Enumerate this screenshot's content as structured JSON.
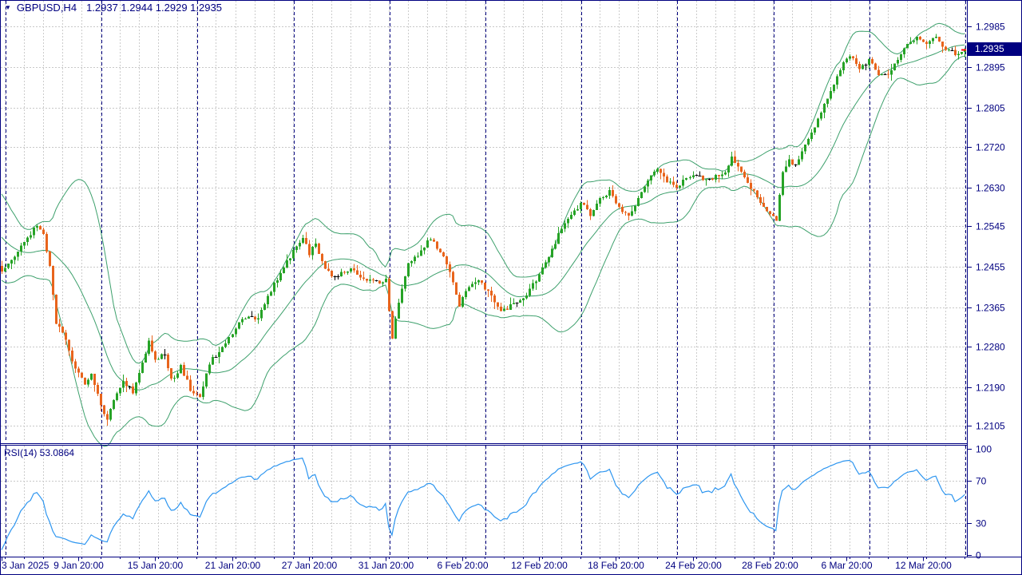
{
  "window": {
    "marker_icon": "▼",
    "title_symbol": "GBPUSD,H4",
    "title_ohlc": "1.2937 1.2944 1.2929 1.2935"
  },
  "colors": {
    "background": "#ffffff",
    "foreground": "#000080",
    "grid": "#c8c8c8",
    "day_grid": "#cccccc",
    "week_separator": "#000080",
    "bull_candle": "#26a326",
    "bear_candle": "#e8641c",
    "doji": "#000000",
    "bollinger": "#3da06c",
    "rsi_line": "#2e96f0",
    "price_tag_bg": "#000080",
    "price_tag_text": "#ffffff",
    "last_price_marker": "#ff0000"
  },
  "chart_data": {
    "type": "candlestick",
    "symbol": "GBPUSD",
    "timeframe": "H4",
    "title": "GBPUSD,H4",
    "ohlc_display": {
      "open": "1.2937",
      "high": "1.2944",
      "low": "1.2929",
      "close": "1.2935"
    },
    "current_price": "1.2935",
    "bars_total": 302,
    "price_axis_labels": [
      "1.2985",
      "1.2895",
      "1.2805",
      "1.2720",
      "1.2630",
      "1.2545",
      "1.2455",
      "1.2365",
      "1.2280",
      "1.2190",
      "1.2105"
    ],
    "time_axis_labels": [
      {
        "index": 0,
        "text": "3 Jan 2025"
      },
      {
        "index": 24,
        "text": "9 Jan 20:00"
      },
      {
        "index": 48,
        "text": "15 Jan 20:00"
      },
      {
        "index": 72,
        "text": "21 Jan 20:00"
      },
      {
        "index": 96,
        "text": "27 Jan 20:00"
      },
      {
        "index": 120,
        "text": "31 Jan 20:00"
      },
      {
        "index": 144,
        "text": "6 Feb 20:00"
      },
      {
        "index": 168,
        "text": "12 Feb 20:00"
      },
      {
        "index": 192,
        "text": "18 Feb 20:00"
      },
      {
        "index": 216,
        "text": "24 Feb 20:00"
      },
      {
        "index": 240,
        "text": "28 Feb 20:00"
      },
      {
        "index": 264,
        "text": "6 Mar 20:00"
      },
      {
        "index": 288,
        "text": "12 Mar 20:00"
      }
    ],
    "week_separator_indices": [
      1,
      31,
      61,
      91,
      121,
      151,
      181,
      211,
      241,
      271,
      301
    ],
    "day_step": 6,
    "close_anchors": [
      [
        0,
        1.244
      ],
      [
        3,
        1.2475
      ],
      [
        7,
        1.2505
      ],
      [
        11,
        1.255
      ],
      [
        13,
        1.2525
      ],
      [
        15,
        1.246
      ],
      [
        17,
        1.2335
      ],
      [
        20,
        1.229
      ],
      [
        23,
        1.223
      ],
      [
        26,
        1.2195
      ],
      [
        28,
        1.222
      ],
      [
        31,
        1.2155
      ],
      [
        33,
        1.2115
      ],
      [
        35,
        1.2165
      ],
      [
        38,
        1.2205
      ],
      [
        41,
        1.218
      ],
      [
        44,
        1.2245
      ],
      [
        46,
        1.229
      ],
      [
        48,
        1.225
      ],
      [
        51,
        1.2265
      ],
      [
        53,
        1.2205
      ],
      [
        56,
        1.2235
      ],
      [
        59,
        1.2185
      ],
      [
        62,
        1.217
      ],
      [
        65,
        1.2245
      ],
      [
        68,
        1.227
      ],
      [
        71,
        1.23
      ],
      [
        74,
        1.233
      ],
      [
        77,
        1.235
      ],
      [
        80,
        1.234
      ],
      [
        83,
        1.239
      ],
      [
        86,
        1.243
      ],
      [
        89,
        1.2465
      ],
      [
        92,
        1.2505
      ],
      [
        94,
        1.252
      ],
      [
        96,
        1.2485
      ],
      [
        98,
        1.2505
      ],
      [
        100,
        1.2465
      ],
      [
        103,
        1.243
      ],
      [
        106,
        1.244
      ],
      [
        109,
        1.245
      ],
      [
        112,
        1.2435
      ],
      [
        115,
        1.2425
      ],
      [
        118,
        1.242
      ],
      [
        120,
        1.243
      ],
      [
        122,
        1.2295
      ],
      [
        124,
        1.238
      ],
      [
        127,
        1.2465
      ],
      [
        130,
        1.248
      ],
      [
        134,
        1.252
      ],
      [
        137,
        1.249
      ],
      [
        140,
        1.2445
      ],
      [
        143,
        1.237
      ],
      [
        146,
        1.241
      ],
      [
        149,
        1.2425
      ],
      [
        152,
        1.24
      ],
      [
        156,
        1.2355
      ],
      [
        159,
        1.237
      ],
      [
        162,
        1.238
      ],
      [
        165,
        1.2405
      ],
      [
        168,
        1.2435
      ],
      [
        171,
        1.248
      ],
      [
        174,
        1.2525
      ],
      [
        177,
        1.256
      ],
      [
        181,
        1.2595
      ],
      [
        184,
        1.257
      ],
      [
        187,
        1.2605
      ],
      [
        190,
        1.262
      ],
      [
        193,
        1.2585
      ],
      [
        196,
        1.2565
      ],
      [
        199,
        1.2605
      ],
      [
        202,
        1.265
      ],
      [
        205,
        1.267
      ],
      [
        208,
        1.2645
      ],
      [
        211,
        1.263
      ],
      [
        214,
        1.265
      ],
      [
        217,
        1.266
      ],
      [
        220,
        1.2645
      ],
      [
        223,
        1.2655
      ],
      [
        226,
        1.2665
      ],
      [
        228,
        1.2695
      ],
      [
        231,
        1.266
      ],
      [
        234,
        1.263
      ],
      [
        237,
        1.26
      ],
      [
        240,
        1.257
      ],
      [
        242,
        1.256
      ],
      [
        244,
        1.2665
      ],
      [
        246,
        1.269
      ],
      [
        248,
        1.2675
      ],
      [
        251,
        1.272
      ],
      [
        254,
        1.2765
      ],
      [
        257,
        1.281
      ],
      [
        260,
        1.286
      ],
      [
        263,
        1.2905
      ],
      [
        265,
        1.292
      ],
      [
        268,
        1.2895
      ],
      [
        271,
        1.291
      ],
      [
        274,
        1.288
      ],
      [
        277,
        1.2875
      ],
      [
        280,
        1.2915
      ],
      [
        283,
        1.2945
      ],
      [
        286,
        1.2965
      ],
      [
        289,
        1.295
      ],
      [
        292,
        1.296
      ],
      [
        295,
        1.2935
      ],
      [
        298,
        1.2925
      ],
      [
        301,
        1.2935
      ]
    ],
    "prehistory": {
      "start": 1.2625,
      "end": 1.245,
      "bars": 22
    },
    "indicators": {
      "bollinger": {
        "name": "Bollinger Bands",
        "period": 20,
        "deviation": 2
      },
      "rsi": {
        "name": "RSI",
        "period": 14,
        "pane_label": "RSI(14) 53.0864",
        "value": 53.0864,
        "scale_labels": [
          100,
          70,
          30,
          0
        ],
        "levels": [
          70,
          30
        ]
      }
    }
  }
}
